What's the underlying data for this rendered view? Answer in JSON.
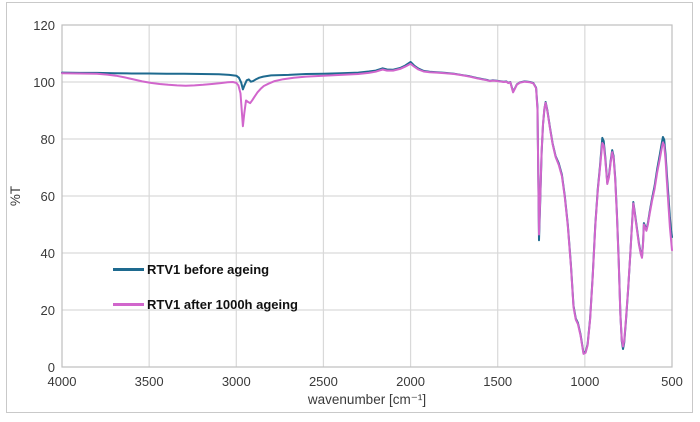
{
  "chart_data": {
    "type": "line",
    "title": "",
    "xlabel": "wavenumber [cm⁻¹]",
    "ylabel": "%T",
    "x_range": [
      4000,
      500
    ],
    "y_range": [
      0,
      120
    ],
    "x_axis_reversed": true,
    "x_ticks": [
      4000,
      3500,
      3000,
      2500,
      2000,
      1500,
      1000,
      500
    ],
    "y_ticks": [
      0,
      20,
      40,
      60,
      80,
      100,
      120
    ],
    "grid": true,
    "legend_position": "inside-left",
    "colors": {
      "grid": "#d9d9d9",
      "plot_border": "#bfbfbf",
      "tick_text": "#3a3a3a",
      "outer_frame": "#c9c9c9",
      "series_before": "#1e6a8f",
      "series_after": "#d166cc"
    },
    "series": [
      {
        "name": "RTV1 before ageing",
        "color": "#1e6a8f",
        "points": [
          [
            4000,
            103.3
          ],
          [
            3900,
            103.2
          ],
          [
            3800,
            103.2
          ],
          [
            3700,
            103.1
          ],
          [
            3600,
            103.0
          ],
          [
            3500,
            103.0
          ],
          [
            3400,
            102.9
          ],
          [
            3300,
            102.9
          ],
          [
            3200,
            102.8
          ],
          [
            3100,
            102.7
          ],
          [
            3040,
            102.5
          ],
          [
            3000,
            102.2
          ],
          [
            2985,
            101.5
          ],
          [
            2972,
            99.8
          ],
          [
            2962,
            97.4
          ],
          [
            2952,
            99.0
          ],
          [
            2940,
            100.6
          ],
          [
            2928,
            100.9
          ],
          [
            2916,
            100.1
          ],
          [
            2904,
            100.3
          ],
          [
            2888,
            100.9
          ],
          [
            2868,
            101.5
          ],
          [
            2845,
            101.9
          ],
          [
            2800,
            102.3
          ],
          [
            2700,
            102.5
          ],
          [
            2600,
            102.8
          ],
          [
            2500,
            102.9
          ],
          [
            2400,
            103.1
          ],
          [
            2300,
            103.3
          ],
          [
            2240,
            103.7
          ],
          [
            2200,
            104.0
          ],
          [
            2160,
            104.8
          ],
          [
            2135,
            104.4
          ],
          [
            2100,
            104.3
          ],
          [
            2060,
            104.9
          ],
          [
            2030,
            105.8
          ],
          [
            2000,
            107.0
          ],
          [
            1980,
            105.8
          ],
          [
            1955,
            104.7
          ],
          [
            1925,
            103.9
          ],
          [
            1890,
            103.6
          ],
          [
            1850,
            103.4
          ],
          [
            1800,
            103.2
          ],
          [
            1750,
            102.9
          ],
          [
            1700,
            102.4
          ],
          [
            1660,
            102.0
          ],
          [
            1620,
            101.4
          ],
          [
            1580,
            100.9
          ],
          [
            1560,
            100.7
          ],
          [
            1545,
            100.4
          ],
          [
            1530,
            100.6
          ],
          [
            1510,
            100.5
          ],
          [
            1490,
            100.3
          ],
          [
            1465,
            100.1
          ],
          [
            1450,
            100.2
          ],
          [
            1440,
            99.7
          ],
          [
            1428,
            100.0
          ],
          [
            1412,
            96.6
          ],
          [
            1400,
            97.9
          ],
          [
            1390,
            99.2
          ],
          [
            1372,
            99.9
          ],
          [
            1345,
            100.2
          ],
          [
            1315,
            100.0
          ],
          [
            1295,
            99.6
          ],
          [
            1280,
            98.0
          ],
          [
            1272,
            91.0
          ],
          [
            1263,
            44.5
          ],
          [
            1256,
            58.0
          ],
          [
            1248,
            75.0
          ],
          [
            1240,
            85.0
          ],
          [
            1232,
            90.5
          ],
          [
            1225,
            93.0
          ],
          [
            1215,
            90.0
          ],
          [
            1200,
            84.0
          ],
          [
            1185,
            78.5
          ],
          [
            1168,
            74.0
          ],
          [
            1150,
            71.5
          ],
          [
            1132,
            67.5
          ],
          [
            1115,
            60.0
          ],
          [
            1098,
            50.0
          ],
          [
            1080,
            36.0
          ],
          [
            1065,
            21.5
          ],
          [
            1052,
            17.0
          ],
          [
            1040,
            15.5
          ],
          [
            1025,
            11.5
          ],
          [
            1008,
            4.9
          ],
          [
            996,
            5.3
          ],
          [
            984,
            8.0
          ],
          [
            970,
            17.0
          ],
          [
            955,
            32.0
          ],
          [
            940,
            50.0
          ],
          [
            926,
            62.5
          ],
          [
            913,
            70.5
          ],
          [
            900,
            80.4
          ],
          [
            892,
            79.3
          ],
          [
            883,
            74.0
          ],
          [
            871,
            64.6
          ],
          [
            862,
            67.0
          ],
          [
            852,
            72.5
          ],
          [
            843,
            76.1
          ],
          [
            835,
            74.0
          ],
          [
            826,
            66.5
          ],
          [
            816,
            54.0
          ],
          [
            806,
            37.5
          ],
          [
            796,
            18.5
          ],
          [
            788,
            9.0
          ],
          [
            781,
            6.3
          ],
          [
            774,
            8.5
          ],
          [
            764,
            16.5
          ],
          [
            752,
            27.0
          ],
          [
            740,
            39.0
          ],
          [
            730,
            49.5
          ],
          [
            722,
            57.9
          ],
          [
            714,
            54.5
          ],
          [
            702,
            49.0
          ],
          [
            690,
            43.5
          ],
          [
            679,
            40.0
          ],
          [
            672,
            38.6
          ],
          [
            666,
            44.0
          ],
          [
            661,
            50.5
          ],
          [
            655,
            49.5
          ],
          [
            647,
            48.2
          ],
          [
            638,
            50.5
          ],
          [
            628,
            54.5
          ],
          [
            615,
            59.0
          ],
          [
            600,
            63.5
          ],
          [
            585,
            69.5
          ],
          [
            570,
            74.5
          ],
          [
            560,
            78.0
          ],
          [
            552,
            80.7
          ],
          [
            545,
            79.8
          ],
          [
            537,
            74.5
          ],
          [
            529,
            67.5
          ],
          [
            520,
            59.5
          ],
          [
            512,
            52.5
          ],
          [
            505,
            48.0
          ],
          [
            500,
            45.6
          ]
        ]
      },
      {
        "name": "RTV1 after 1000h ageing",
        "color": "#d166cc",
        "points": [
          [
            4000,
            103.1
          ],
          [
            3900,
            103.0
          ],
          [
            3800,
            102.9
          ],
          [
            3740,
            102.6
          ],
          [
            3690,
            102.2
          ],
          [
            3640,
            101.6
          ],
          [
            3590,
            100.9
          ],
          [
            3540,
            100.2
          ],
          [
            3490,
            99.7
          ],
          [
            3440,
            99.3
          ],
          [
            3390,
            99.0
          ],
          [
            3340,
            98.8
          ],
          [
            3290,
            98.7
          ],
          [
            3240,
            98.8
          ],
          [
            3190,
            99.0
          ],
          [
            3140,
            99.3
          ],
          [
            3090,
            99.6
          ],
          [
            3050,
            99.9
          ],
          [
            3020,
            100.0
          ],
          [
            3000,
            99.7
          ],
          [
            2988,
            98.8
          ],
          [
            2976,
            96.0
          ],
          [
            2962,
            84.5
          ],
          [
            2954,
            89.0
          ],
          [
            2944,
            93.5
          ],
          [
            2932,
            93.0
          ],
          [
            2920,
            92.6
          ],
          [
            2908,
            93.6
          ],
          [
            2894,
            95.0
          ],
          [
            2878,
            96.4
          ],
          [
            2860,
            97.6
          ],
          [
            2842,
            98.6
          ],
          [
            2815,
            99.4
          ],
          [
            2780,
            100.3
          ],
          [
            2730,
            101.0
          ],
          [
            2670,
            101.5
          ],
          [
            2600,
            101.9
          ],
          [
            2500,
            102.2
          ],
          [
            2400,
            102.5
          ],
          [
            2300,
            102.8
          ],
          [
            2240,
            103.2
          ],
          [
            2200,
            103.6
          ],
          [
            2160,
            104.4
          ],
          [
            2135,
            104.0
          ],
          [
            2100,
            104.0
          ],
          [
            2060,
            104.6
          ],
          [
            2030,
            105.4
          ],
          [
            2000,
            106.4
          ],
          [
            1980,
            105.4
          ],
          [
            1955,
            104.4
          ],
          [
            1925,
            103.7
          ],
          [
            1890,
            103.4
          ],
          [
            1850,
            103.3
          ],
          [
            1800,
            103.1
          ],
          [
            1750,
            102.8
          ],
          [
            1700,
            102.3
          ],
          [
            1660,
            101.9
          ],
          [
            1620,
            101.3
          ],
          [
            1580,
            100.8
          ],
          [
            1560,
            100.6
          ],
          [
            1545,
            100.3
          ],
          [
            1530,
            100.5
          ],
          [
            1510,
            100.4
          ],
          [
            1490,
            100.2
          ],
          [
            1465,
            100.0
          ],
          [
            1450,
            100.1
          ],
          [
            1440,
            99.6
          ],
          [
            1428,
            99.9
          ],
          [
            1412,
            96.4
          ],
          [
            1400,
            97.8
          ],
          [
            1390,
            99.1
          ],
          [
            1372,
            99.8
          ],
          [
            1345,
            100.1
          ],
          [
            1315,
            99.9
          ],
          [
            1295,
            99.5
          ],
          [
            1280,
            97.8
          ],
          [
            1272,
            90.0
          ],
          [
            1263,
            46.5
          ],
          [
            1256,
            59.0
          ],
          [
            1248,
            75.5
          ],
          [
            1240,
            85.3
          ],
          [
            1232,
            90.7
          ],
          [
            1225,
            92.7
          ],
          [
            1215,
            89.7
          ],
          [
            1200,
            83.7
          ],
          [
            1185,
            78.2
          ],
          [
            1168,
            73.7
          ],
          [
            1150,
            71.0
          ],
          [
            1132,
            67.0
          ],
          [
            1115,
            59.5
          ],
          [
            1098,
            49.5
          ],
          [
            1080,
            35.5
          ],
          [
            1065,
            21.0
          ],
          [
            1052,
            16.6
          ],
          [
            1040,
            15.1
          ],
          [
            1025,
            11.1
          ],
          [
            1008,
            4.6
          ],
          [
            996,
            5.0
          ],
          [
            984,
            7.6
          ],
          [
            970,
            16.6
          ],
          [
            955,
            31.5
          ],
          [
            940,
            49.5
          ],
          [
            926,
            62.0
          ],
          [
            913,
            69.8
          ],
          [
            900,
            78.6
          ],
          [
            892,
            77.8
          ],
          [
            883,
            73.0
          ],
          [
            871,
            64.2
          ],
          [
            862,
            66.5
          ],
          [
            852,
            71.8
          ],
          [
            843,
            75.4
          ],
          [
            835,
            73.3
          ],
          [
            826,
            65.8
          ],
          [
            816,
            53.3
          ],
          [
            806,
            36.8
          ],
          [
            796,
            18.0
          ],
          [
            788,
            9.5
          ],
          [
            781,
            7.2
          ],
          [
            774,
            9.2
          ],
          [
            764,
            17.0
          ],
          [
            752,
            27.3
          ],
          [
            740,
            39.0
          ],
          [
            730,
            49.2
          ],
          [
            722,
            57.4
          ],
          [
            714,
            54.0
          ],
          [
            702,
            48.5
          ],
          [
            690,
            43.0
          ],
          [
            679,
            39.6
          ],
          [
            672,
            38.3
          ],
          [
            666,
            43.5
          ],
          [
            661,
            50.0
          ],
          [
            655,
            49.0
          ],
          [
            647,
            47.8
          ],
          [
            638,
            50.0
          ],
          [
            628,
            53.8
          ],
          [
            615,
            58.2
          ],
          [
            600,
            62.5
          ],
          [
            585,
            68.3
          ],
          [
            570,
            73.0
          ],
          [
            560,
            76.3
          ],
          [
            552,
            78.8
          ],
          [
            545,
            77.8
          ],
          [
            537,
            72.5
          ],
          [
            529,
            65.0
          ],
          [
            520,
            56.5
          ],
          [
            512,
            49.0
          ],
          [
            505,
            44.5
          ],
          [
            500,
            41.0
          ]
        ]
      }
    ]
  }
}
